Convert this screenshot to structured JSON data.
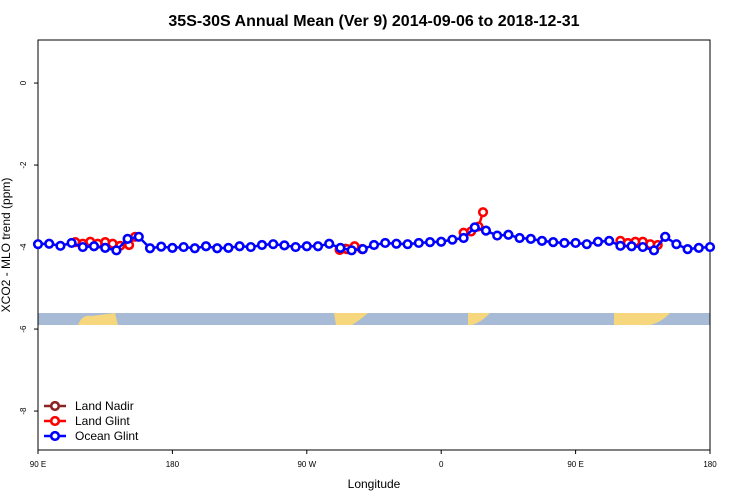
{
  "chart_data": {
    "type": "line",
    "title": "35S-30S Annual Mean (Ver 9)   2014-09-06 to 2018-12-31",
    "x_label": "Longitude",
    "y_label": "XCO2 - MLO trend (ppm)",
    "xlim": [
      90,
      540
    ],
    "xticks": [
      {
        "value": 90,
        "label": "90 E"
      },
      {
        "value": 180,
        "label": "180"
      },
      {
        "value": 270,
        "label": "90 W"
      },
      {
        "value": 360,
        "label": "0"
      },
      {
        "value": 450,
        "label": "90 E"
      },
      {
        "value": 540,
        "label": "180"
      }
    ],
    "ylim": [
      -8.95,
      1.05
    ],
    "yticks": [
      0,
      -2,
      -4,
      -6,
      -8
    ],
    "legend": "bottom-left",
    "series": [
      {
        "name": "Land Nadir",
        "color": "#8b2323",
        "x": [
          292,
          296
        ],
        "values": [
          -4.06,
          -4.04
        ]
      },
      {
        "name": "Land Glint",
        "color": "#ff0000",
        "x": [
          115,
          120,
          125,
          130,
          135,
          140,
          145,
          151,
          155,
          220,
          292,
          297,
          302,
          307,
          340,
          375,
          380,
          385,
          388,
          440,
          480,
          485,
          490,
          495,
          500,
          505,
          510
        ],
        "values": [
          -3.88,
          -3.92,
          -3.87,
          -3.92,
          -3.88,
          -3.92,
          -3.97,
          -3.95,
          -3.75,
          null,
          -4.07,
          -4.05,
          -3.98,
          -4.05,
          null,
          -3.65,
          -3.62,
          -3.5,
          -3.15,
          null,
          -3.85,
          -3.9,
          -3.87,
          -3.87,
          -3.93,
          -3.95,
          -3.75
        ]
      },
      {
        "name": "Ocean Glint",
        "color": "#0000ff",
        "x": [
          90,
          97.5,
          105,
          112.5,
          120,
          127.5,
          135,
          142.5,
          150,
          157.5,
          165,
          172.5,
          180,
          187.5,
          195,
          202.5,
          210,
          217.5,
          225,
          232.5,
          240,
          247.5,
          255,
          262.5,
          270,
          277.5,
          285,
          292.5,
          300,
          307.5,
          315,
          322.5,
          330,
          337.5,
          345,
          352.5,
          360,
          367.5,
          375,
          382.5,
          390,
          397.5,
          405,
          412.5,
          420,
          427.5,
          435,
          442.5,
          450,
          457.5,
          465,
          472.5,
          480,
          487.5,
          495,
          502.5,
          510,
          517.5,
          525,
          532.5,
          540
        ],
        "values": [
          -3.93,
          -3.92,
          -3.97,
          -3.9,
          -4.0,
          -3.98,
          -4.02,
          -4.08,
          -3.8,
          -3.75,
          -4.03,
          -3.99,
          -4.02,
          -4.0,
          -4.03,
          -3.98,
          -4.03,
          -4.02,
          -3.98,
          -4.0,
          -3.95,
          -3.93,
          -3.96,
          -4.0,
          -3.98,
          -3.98,
          -3.92,
          -4.02,
          -4.08,
          -4.05,
          -3.95,
          -3.9,
          -3.92,
          -3.93,
          -3.9,
          -3.88,
          -3.87,
          -3.82,
          -3.78,
          -3.52,
          -3.6,
          -3.72,
          -3.7,
          -3.78,
          -3.8,
          -3.85,
          -3.88,
          -3.9,
          -3.9,
          -3.93,
          -3.87,
          -3.85,
          -3.97,
          -3.98,
          -4.0,
          -4.08,
          -3.75,
          -3.93,
          -4.05,
          -4.02,
          -4.0
        ]
      }
    ]
  }
}
